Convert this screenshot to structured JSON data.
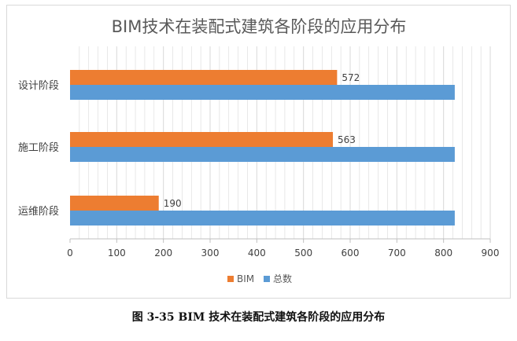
{
  "colors": {
    "bim": "#ED7D31",
    "total": "#5B9BD5",
    "grid": "#d9d9d9",
    "axis": "#bfbfbf"
  },
  "chart_data": {
    "type": "bar",
    "orientation": "horizontal",
    "title": "BIM技术在装配式建筑各阶段的应用分布",
    "categories": [
      "设计阶段",
      "施工阶段",
      "运维阶段"
    ],
    "series": [
      {
        "name": "BIM",
        "values": [
          572,
          563,
          190
        ],
        "color": "#ED7D31",
        "show_data_labels": true
      },
      {
        "name": "总数",
        "values": [
          824,
          824,
          824
        ],
        "color": "#5B9BD5",
        "show_data_labels": false
      }
    ],
    "xlim": [
      0,
      900
    ],
    "xticks": [
      0,
      100,
      200,
      300,
      400,
      500,
      600,
      700,
      800,
      900
    ],
    "grid": true,
    "legend_position": "bottom"
  },
  "caption": "图 3-35 BIM 技术在装配式建筑各阶段的应用分布"
}
